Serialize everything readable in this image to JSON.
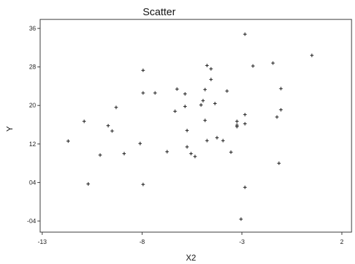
{
  "chart_data": {
    "type": "scatter",
    "title": "Scatter",
    "xlabel": "X2",
    "ylabel": "Y",
    "xlim": [
      -13,
      2
    ],
    "ylim": [
      -0.4,
      3.6
    ],
    "xticks": [
      -13,
      -8,
      -3,
      2
    ],
    "xtick_labels": [
      "-13",
      "-8",
      "-3",
      "2"
    ],
    "yticks": [
      -0.4,
      0.4,
      1.2,
      2.0,
      2.8,
      3.6
    ],
    "ytick_labels": [
      "-04",
      "04",
      "12",
      "20",
      "28",
      "36"
    ],
    "grid": false,
    "series": [
      {
        "points": [
          [
            -11.7,
            1.26
          ],
          [
            -10.9,
            1.67
          ],
          [
            -10.7,
            0.37
          ],
          [
            -10.1,
            0.97
          ],
          [
            -9.7,
            1.58
          ],
          [
            -9.5,
            1.47
          ],
          [
            -9.3,
            1.96
          ],
          [
            -8.9,
            1.0
          ],
          [
            -8.1,
            1.21
          ],
          [
            -7.95,
            2.73
          ],
          [
            -7.95,
            2.26
          ],
          [
            -7.95,
            0.36
          ],
          [
            -7.35,
            2.26
          ],
          [
            -6.75,
            1.04
          ],
          [
            -6.35,
            1.88
          ],
          [
            -6.25,
            2.34
          ],
          [
            -5.85,
            1.98
          ],
          [
            -5.85,
            2.24
          ],
          [
            -5.75,
            1.48
          ],
          [
            -5.55,
            1.0
          ],
          [
            -5.35,
            0.94
          ],
          [
            -5.75,
            1.14
          ],
          [
            -5.05,
            2.01
          ],
          [
            -4.85,
            2.33
          ],
          [
            -4.85,
            1.69
          ],
          [
            -4.95,
            2.1
          ],
          [
            -4.55,
            2.54
          ],
          [
            -4.35,
            2.04
          ],
          [
            -4.55,
            2.76
          ],
          [
            -4.75,
            2.83
          ],
          [
            -4.75,
            1.27
          ],
          [
            -4.25,
            1.33
          ],
          [
            -3.95,
            1.27
          ],
          [
            -3.75,
            2.3
          ],
          [
            -3.55,
            1.03
          ],
          [
            -3.25,
            1.67
          ],
          [
            -3.25,
            1.59
          ],
          [
            -2.85,
            1.81
          ],
          [
            -2.85,
            1.62
          ],
          [
            -3.05,
            -0.36
          ],
          [
            -2.85,
            0.3
          ],
          [
            -2.85,
            3.48
          ],
          [
            -2.45,
            2.82
          ],
          [
            -1.45,
            2.88
          ],
          [
            -1.25,
            1.76
          ],
          [
            -1.15,
            0.8
          ],
          [
            -1.05,
            1.91
          ],
          [
            -1.05,
            2.35
          ],
          [
            0.5,
            3.04
          ],
          [
            -3.25,
            1.56
          ]
        ]
      }
    ]
  }
}
